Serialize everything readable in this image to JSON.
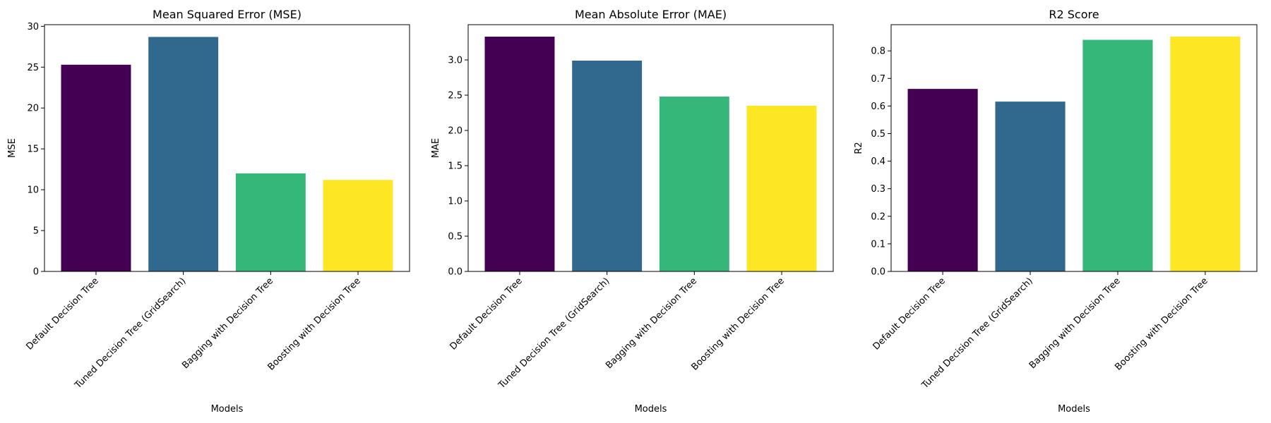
{
  "chart_data": [
    {
      "type": "bar",
      "title": "Mean Squared Error (MSE)",
      "xlabel": "Models",
      "ylabel": "MSE",
      "categories": [
        "Default Decision Tree",
        "Tuned Decision Tree (GridSearch)",
        "Bagging with Decision Tree",
        "Boosting with Decision Tree"
      ],
      "values": [
        25.3,
        28.7,
        12.0,
        11.2
      ],
      "colors": [
        "#440154",
        "#31688e",
        "#35b779",
        "#fde725"
      ],
      "ylim": [
        0,
        30.2
      ],
      "yticks": [
        0,
        5,
        10,
        15,
        20,
        25,
        30
      ],
      "ytick_labels": [
        "0",
        "5",
        "10",
        "15",
        "20",
        "25",
        "30"
      ],
      "grid": false,
      "legend": "none"
    },
    {
      "type": "bar",
      "title": "Mean Absolute Error (MAE)",
      "xlabel": "Models",
      "ylabel": "MAE",
      "categories": [
        "Default Decision Tree",
        "Tuned Decision Tree (GridSearch)",
        "Bagging with Decision Tree",
        "Boosting with Decision Tree"
      ],
      "values": [
        3.33,
        2.99,
        2.48,
        2.35
      ],
      "colors": [
        "#440154",
        "#31688e",
        "#35b779",
        "#fde725"
      ],
      "ylim": [
        0,
        3.5
      ],
      "yticks": [
        0,
        0.5,
        1.0,
        1.5,
        2.0,
        2.5,
        3.0
      ],
      "ytick_labels": [
        "0.0",
        "0.5",
        "1.0",
        "1.5",
        "2.0",
        "2.5",
        "3.0"
      ],
      "grid": false,
      "legend": "none"
    },
    {
      "type": "bar",
      "title": "R2 Score",
      "xlabel": "Models",
      "ylabel": "R2",
      "categories": [
        "Default Decision Tree",
        "Tuned Decision Tree (GridSearch)",
        "Bagging with Decision Tree",
        "Boosting with Decision Tree"
      ],
      "values": [
        0.662,
        0.616,
        0.84,
        0.852
      ],
      "colors": [
        "#440154",
        "#31688e",
        "#35b779",
        "#fde725"
      ],
      "ylim": [
        0,
        0.895
      ],
      "yticks": [
        0,
        0.1,
        0.2,
        0.3,
        0.4,
        0.5,
        0.6,
        0.7,
        0.8
      ],
      "ytick_labels": [
        "0.0",
        "0.1",
        "0.2",
        "0.3",
        "0.4",
        "0.5",
        "0.6",
        "0.7",
        "0.8"
      ],
      "grid": false,
      "legend": "none"
    }
  ]
}
